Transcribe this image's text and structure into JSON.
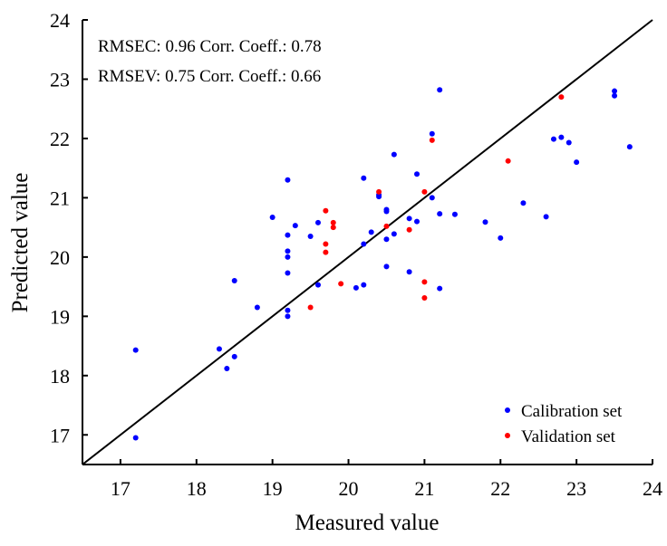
{
  "chart_data": {
    "type": "scatter",
    "xlabel": "Measured value",
    "ylabel": "Predicted value",
    "xlim": [
      16.5,
      24
    ],
    "ylim": [
      16.5,
      24
    ],
    "xticks": [
      17,
      18,
      19,
      20,
      21,
      22,
      23,
      24
    ],
    "yticks": [
      17,
      18,
      19,
      20,
      21,
      22,
      23,
      24
    ],
    "annotations": [
      "RMSEC: 0.96 Corr. Coeff.: 0.78",
      "RMSEV: 0.75 Corr. Coeff.: 0.66"
    ],
    "reference_line": "y = x",
    "legend_position": "bottom-right",
    "series": [
      {
        "name": "Calibration set",
        "color": "#0000ff",
        "points": [
          [
            17.2,
            18.43
          ],
          [
            17.2,
            16.95
          ],
          [
            18.3,
            18.45
          ],
          [
            18.4,
            18.12
          ],
          [
            18.5,
            18.32
          ],
          [
            18.5,
            19.6
          ],
          [
            18.8,
            19.15
          ],
          [
            19.2,
            19.1
          ],
          [
            19.2,
            19.0
          ],
          [
            19.2,
            19.73
          ],
          [
            19.2,
            20.0
          ],
          [
            19.2,
            20.1
          ],
          [
            19.2,
            20.37
          ],
          [
            19.2,
            21.3
          ],
          [
            19.0,
            20.67
          ],
          [
            19.3,
            20.53
          ],
          [
            19.5,
            20.35
          ],
          [
            19.6,
            20.58
          ],
          [
            19.6,
            19.53
          ],
          [
            20.1,
            19.48
          ],
          [
            20.2,
            19.53
          ],
          [
            20.2,
            20.22
          ],
          [
            20.2,
            21.33
          ],
          [
            20.3,
            20.42
          ],
          [
            20.4,
            21.05
          ],
          [
            20.4,
            21.02
          ],
          [
            20.5,
            20.8
          ],
          [
            20.5,
            20.77
          ],
          [
            20.5,
            20.3
          ],
          [
            20.5,
            19.84
          ],
          [
            20.6,
            20.39
          ],
          [
            20.6,
            21.73
          ],
          [
            20.8,
            20.65
          ],
          [
            20.8,
            19.75
          ],
          [
            20.9,
            20.6
          ],
          [
            20.9,
            21.4
          ],
          [
            21.1,
            22.08
          ],
          [
            21.1,
            21.0
          ],
          [
            21.2,
            20.73
          ],
          [
            21.2,
            19.47
          ],
          [
            21.2,
            22.82
          ],
          [
            21.4,
            20.72
          ],
          [
            21.8,
            20.59
          ],
          [
            22.0,
            20.32
          ],
          [
            22.3,
            20.91
          ],
          [
            22.6,
            20.68
          ],
          [
            22.7,
            21.99
          ],
          [
            22.8,
            22.02
          ],
          [
            22.9,
            21.93
          ],
          [
            23.0,
            21.6
          ],
          [
            23.5,
            22.8
          ],
          [
            23.5,
            22.72
          ],
          [
            23.7,
            21.86
          ]
        ]
      },
      {
        "name": "Validation set",
        "color": "#ff0000",
        "points": [
          [
            19.5,
            19.15
          ],
          [
            19.7,
            20.78
          ],
          [
            19.7,
            20.22
          ],
          [
            19.7,
            20.08
          ],
          [
            19.8,
            20.58
          ],
          [
            19.8,
            20.5
          ],
          [
            19.9,
            19.55
          ],
          [
            20.4,
            21.1
          ],
          [
            20.5,
            20.52
          ],
          [
            20.8,
            20.46
          ],
          [
            21.0,
            21.1
          ],
          [
            21.0,
            19.58
          ],
          [
            21.0,
            19.31
          ],
          [
            21.1,
            21.97
          ],
          [
            22.1,
            21.62
          ],
          [
            22.8,
            22.7
          ]
        ]
      }
    ]
  }
}
